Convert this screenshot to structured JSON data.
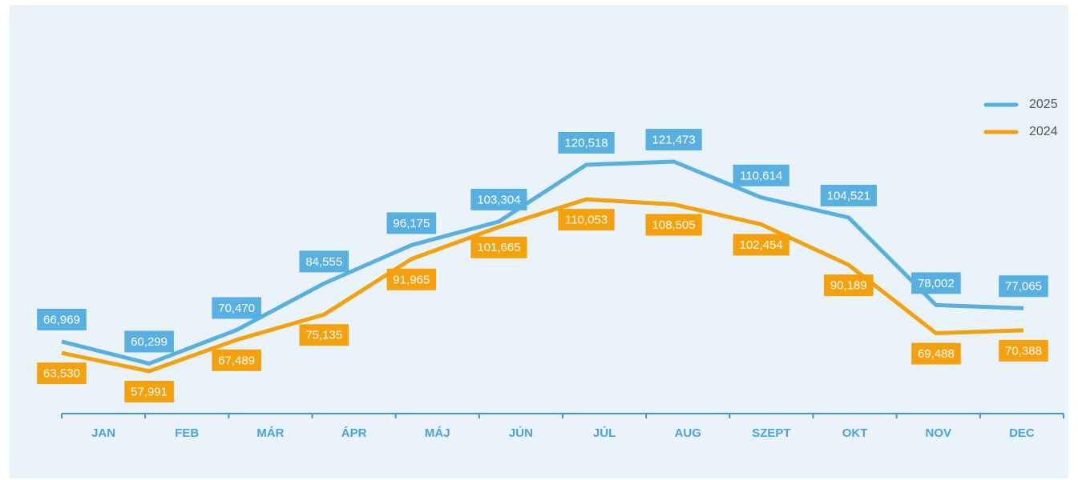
{
  "chart_data": {
    "type": "line",
    "categories": [
      "JAN",
      "FEB",
      "MÁR",
      "ÁPR",
      "MÁJ",
      "JÚN",
      "JÚL",
      "AUG",
      "SZEPT",
      "OKT",
      "NOV",
      "DEC"
    ],
    "series": [
      {
        "name": "2025",
        "color": "#58b0e0",
        "values": [
          66969,
          60299,
          70470,
          84555,
          96175,
          103304,
          120518,
          121473,
          110614,
          104521,
          78002,
          77065
        ],
        "value_labels": [
          "66,969",
          "60,299",
          "70,470",
          "84,555",
          "96,175",
          "103,304",
          "120,518",
          "121,473",
          "110,614",
          "104,521",
          "78,002",
          "77,065"
        ]
      },
      {
        "name": "2024",
        "color": "#f4a10d",
        "values": [
          63530,
          57991,
          67489,
          75135,
          91965,
          101665,
          110053,
          108505,
          102454,
          90189,
          69488,
          70388
        ],
        "value_labels": [
          "63,530",
          "57,991",
          "67,489",
          "75,135",
          "91,965",
          "101,665",
          "110,053",
          "108,505",
          "102,454",
          "90,189",
          "69,488",
          "70,388"
        ]
      }
    ],
    "legend": "top-right"
  }
}
